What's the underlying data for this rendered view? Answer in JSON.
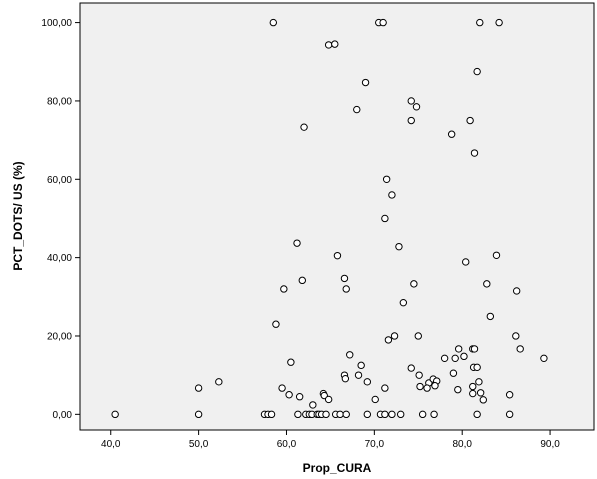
{
  "chart_data": {
    "type": "scatter",
    "title": "",
    "xlabel": "Prop_CURA",
    "ylabel": "PCT_DOTS/ US (%)",
    "xlim": [
      36.5,
      95.0
    ],
    "ylim": [
      -4.0,
      105.0
    ],
    "grid": false,
    "legend": "none",
    "x_ticks": [
      {
        "value": 40,
        "label": "40,0"
      },
      {
        "value": 50,
        "label": "50,0"
      },
      {
        "value": 60,
        "label": "60,0"
      },
      {
        "value": 70,
        "label": "70,0"
      },
      {
        "value": 80,
        "label": "80,0"
      },
      {
        "value": 90,
        "label": "90,0"
      }
    ],
    "y_ticks": [
      {
        "value": 0,
        "label": "0,00"
      },
      {
        "value": 20,
        "label": "20,00"
      },
      {
        "value": 40,
        "label": "40,00"
      },
      {
        "value": 60,
        "label": "60,00"
      },
      {
        "value": 80,
        "label": "80,00"
      },
      {
        "value": 100,
        "label": "100,00"
      }
    ],
    "colors": {
      "background": "#f0f0f0",
      "point_fill": "#ffffff",
      "point_stroke": "#000000"
    },
    "series": [
      {
        "points": [
          [
            58.5,
            100
          ],
          [
            70.5,
            100
          ],
          [
            71.0,
            100
          ],
          [
            82.0,
            100
          ],
          [
            84.2,
            100
          ],
          [
            64.8,
            94.3
          ],
          [
            65.5,
            94.5
          ],
          [
            81.7,
            87.5
          ],
          [
            69.0,
            84.7
          ],
          [
            68.0,
            77.8
          ],
          [
            74.2,
            80.0
          ],
          [
            74.8,
            78.5
          ],
          [
            74.2,
            75.0
          ],
          [
            80.9,
            75.0
          ],
          [
            78.8,
            71.5
          ],
          [
            62.0,
            73.3
          ],
          [
            81.4,
            66.7
          ],
          [
            71.4,
            60.0
          ],
          [
            72.0,
            56.0
          ],
          [
            71.2,
            50.0
          ],
          [
            61.2,
            43.7
          ],
          [
            72.8,
            42.8
          ],
          [
            65.8,
            40.5
          ],
          [
            83.9,
            40.6
          ],
          [
            80.4,
            38.9
          ],
          [
            66.6,
            34.7
          ],
          [
            61.8,
            34.2
          ],
          [
            74.5,
            33.3
          ],
          [
            82.8,
            33.3
          ],
          [
            59.7,
            32.0
          ],
          [
            66.8,
            32.0
          ],
          [
            86.2,
            31.5
          ],
          [
            73.3,
            28.5
          ],
          [
            83.2,
            25.0
          ],
          [
            58.8,
            23.0
          ],
          [
            75.0,
            20.0
          ],
          [
            72.3,
            20.0
          ],
          [
            71.6,
            19.0
          ],
          [
            86.1,
            20.0
          ],
          [
            81.2,
            16.7
          ],
          [
            81.4,
            16.7
          ],
          [
            79.6,
            16.7
          ],
          [
            86.6,
            16.7
          ],
          [
            67.2,
            15.2
          ],
          [
            78.0,
            14.3
          ],
          [
            79.2,
            14.3
          ],
          [
            80.2,
            14.8
          ],
          [
            89.3,
            14.3
          ],
          [
            60.5,
            13.3
          ],
          [
            68.5,
            12.5
          ],
          [
            74.2,
            11.8
          ],
          [
            81.3,
            12.0
          ],
          [
            81.7,
            12.0
          ],
          [
            79.0,
            10.5
          ],
          [
            66.6,
            10.0
          ],
          [
            66.7,
            9.1
          ],
          [
            68.2,
            10.0
          ],
          [
            75.1,
            10.0
          ],
          [
            69.2,
            8.3
          ],
          [
            76.2,
            8.0
          ],
          [
            76.7,
            9.0
          ],
          [
            77.1,
            8.5
          ],
          [
            81.9,
            8.3
          ],
          [
            52.3,
            8.3
          ],
          [
            50.0,
            6.7
          ],
          [
            59.5,
            6.7
          ],
          [
            71.2,
            6.7
          ],
          [
            75.2,
            7.1
          ],
          [
            76.0,
            6.7
          ],
          [
            76.9,
            7.3
          ],
          [
            79.5,
            6.3
          ],
          [
            81.2,
            7.1
          ],
          [
            81.2,
            5.3
          ],
          [
            82.1,
            5.5
          ],
          [
            85.4,
            5.0
          ],
          [
            60.3,
            5.0
          ],
          [
            61.5,
            4.5
          ],
          [
            64.2,
            5.3
          ],
          [
            64.3,
            4.8
          ],
          [
            64.8,
            3.8
          ],
          [
            70.1,
            3.8
          ],
          [
            82.4,
            3.7
          ],
          [
            63.0,
            2.4
          ],
          [
            40.5,
            0
          ],
          [
            50.0,
            0
          ],
          [
            57.5,
            0
          ],
          [
            57.9,
            0
          ],
          [
            58.3,
            0
          ],
          [
            61.3,
            0
          ],
          [
            62.2,
            0
          ],
          [
            62.6,
            0
          ],
          [
            62.9,
            0
          ],
          [
            63.5,
            0
          ],
          [
            63.7,
            0
          ],
          [
            64.0,
            0
          ],
          [
            64.5,
            0
          ],
          [
            65.6,
            0
          ],
          [
            66.1,
            0
          ],
          [
            66.8,
            0
          ],
          [
            69.2,
            0
          ],
          [
            70.7,
            0
          ],
          [
            71.2,
            0
          ],
          [
            72.0,
            0
          ],
          [
            73.0,
            0
          ],
          [
            75.5,
            0
          ],
          [
            76.8,
            0
          ],
          [
            81.7,
            0
          ],
          [
            85.4,
            0
          ]
        ]
      }
    ]
  }
}
